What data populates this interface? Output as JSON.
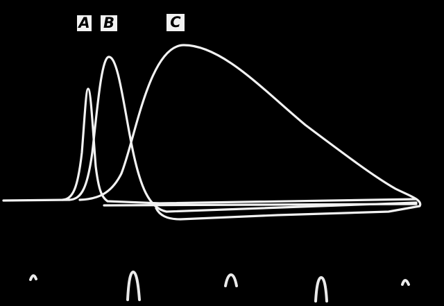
{
  "labels": [
    "A",
    "B",
    "C"
  ]
}
